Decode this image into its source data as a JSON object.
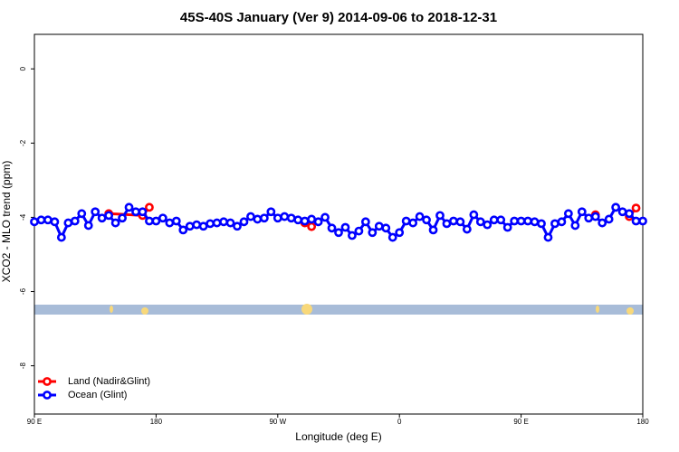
{
  "chart_data": {
    "type": "line",
    "title": "45S-40S January (Ver 9)   2014-09-06 to 2018-12-31",
    "x_label": "Longitude (deg E)",
    "y_label": "XCO2 - MLO trend (ppm)",
    "xlim": [
      90,
      540
    ],
    "xticks": [
      {
        "value": 90,
        "label": "90 E"
      },
      {
        "value": 180,
        "label": "180"
      },
      {
        "value": 270,
        "label": "90 W"
      },
      {
        "value": 360,
        "label": "0"
      },
      {
        "value": 450,
        "label": "90 E"
      },
      {
        "value": 540,
        "label": "180"
      }
    ],
    "ylim": [
      -9.3,
      0.93
    ],
    "yticks": [
      0,
      -2,
      -4,
      -6,
      -8
    ],
    "legend": "bottom-left",
    "series": [
      {
        "name": "Land (Nadir&Glint)",
        "color": "#ff0000",
        "x": [
          145,
          170,
          175,
          180,
          290,
          295,
          300,
          505,
          510,
          530,
          535
        ],
        "values": [
          -3.9,
          -3.95,
          -3.73,
          null,
          -4.15,
          -4.25,
          null,
          -3.93,
          null,
          -3.98,
          -3.75
        ]
      },
      {
        "name": "Ocean (Glint)",
        "color": "#0000ff",
        "x": [
          90,
          95,
          100,
          105,
          110,
          115,
          120,
          125,
          130,
          135,
          140,
          145,
          150,
          155,
          160,
          165,
          170,
          175,
          180,
          185,
          190,
          195,
          200,
          205,
          210,
          215,
          220,
          225,
          230,
          235,
          240,
          245,
          250,
          255,
          260,
          265,
          270,
          275,
          280,
          285,
          290,
          295,
          300,
          305,
          310,
          315,
          320,
          325,
          330,
          335,
          340,
          345,
          350,
          355,
          360,
          365,
          370,
          375,
          380,
          385,
          390,
          395,
          400,
          405,
          410,
          415,
          420,
          425,
          430,
          435,
          440,
          445,
          450,
          455,
          460,
          465,
          470,
          475,
          480,
          485,
          490,
          495,
          500,
          505,
          510,
          515,
          520,
          525,
          530,
          535,
          540
        ],
        "values": [
          -4.12,
          -4.07,
          -4.07,
          -4.12,
          -4.54,
          -4.15,
          -4.1,
          -3.9,
          -4.22,
          -3.85,
          -4.02,
          -3.95,
          -4.15,
          -4.02,
          -3.73,
          -3.85,
          -3.85,
          -4.1,
          -4.1,
          -4.02,
          -4.15,
          -4.1,
          -4.34,
          -4.24,
          -4.2,
          -4.24,
          -4.17,
          -4.15,
          -4.12,
          -4.15,
          -4.24,
          -4.12,
          -3.98,
          -4.05,
          -4.02,
          -3.85,
          -4.02,
          -3.98,
          -4.02,
          -4.07,
          -4.1,
          -4.05,
          -4.12,
          -4.0,
          -4.29,
          -4.41,
          -4.27,
          -4.49,
          -4.37,
          -4.12,
          -4.41,
          -4.24,
          -4.29,
          -4.54,
          -4.41,
          -4.1,
          -4.15,
          -3.98,
          -4.07,
          -4.34,
          -3.95,
          -4.17,
          -4.1,
          -4.12,
          -4.32,
          -3.93,
          -4.12,
          -4.2,
          -4.07,
          -4.07,
          -4.27,
          -4.1,
          -4.1,
          -4.1,
          -4.12,
          -4.17,
          -4.54,
          -4.17,
          -4.12,
          -3.9,
          -4.22,
          -3.85,
          -4.02,
          -3.98,
          -4.15,
          -4.05,
          -3.73,
          -3.85,
          -3.9,
          -4.1,
          -4.1
        ]
      }
    ]
  }
}
